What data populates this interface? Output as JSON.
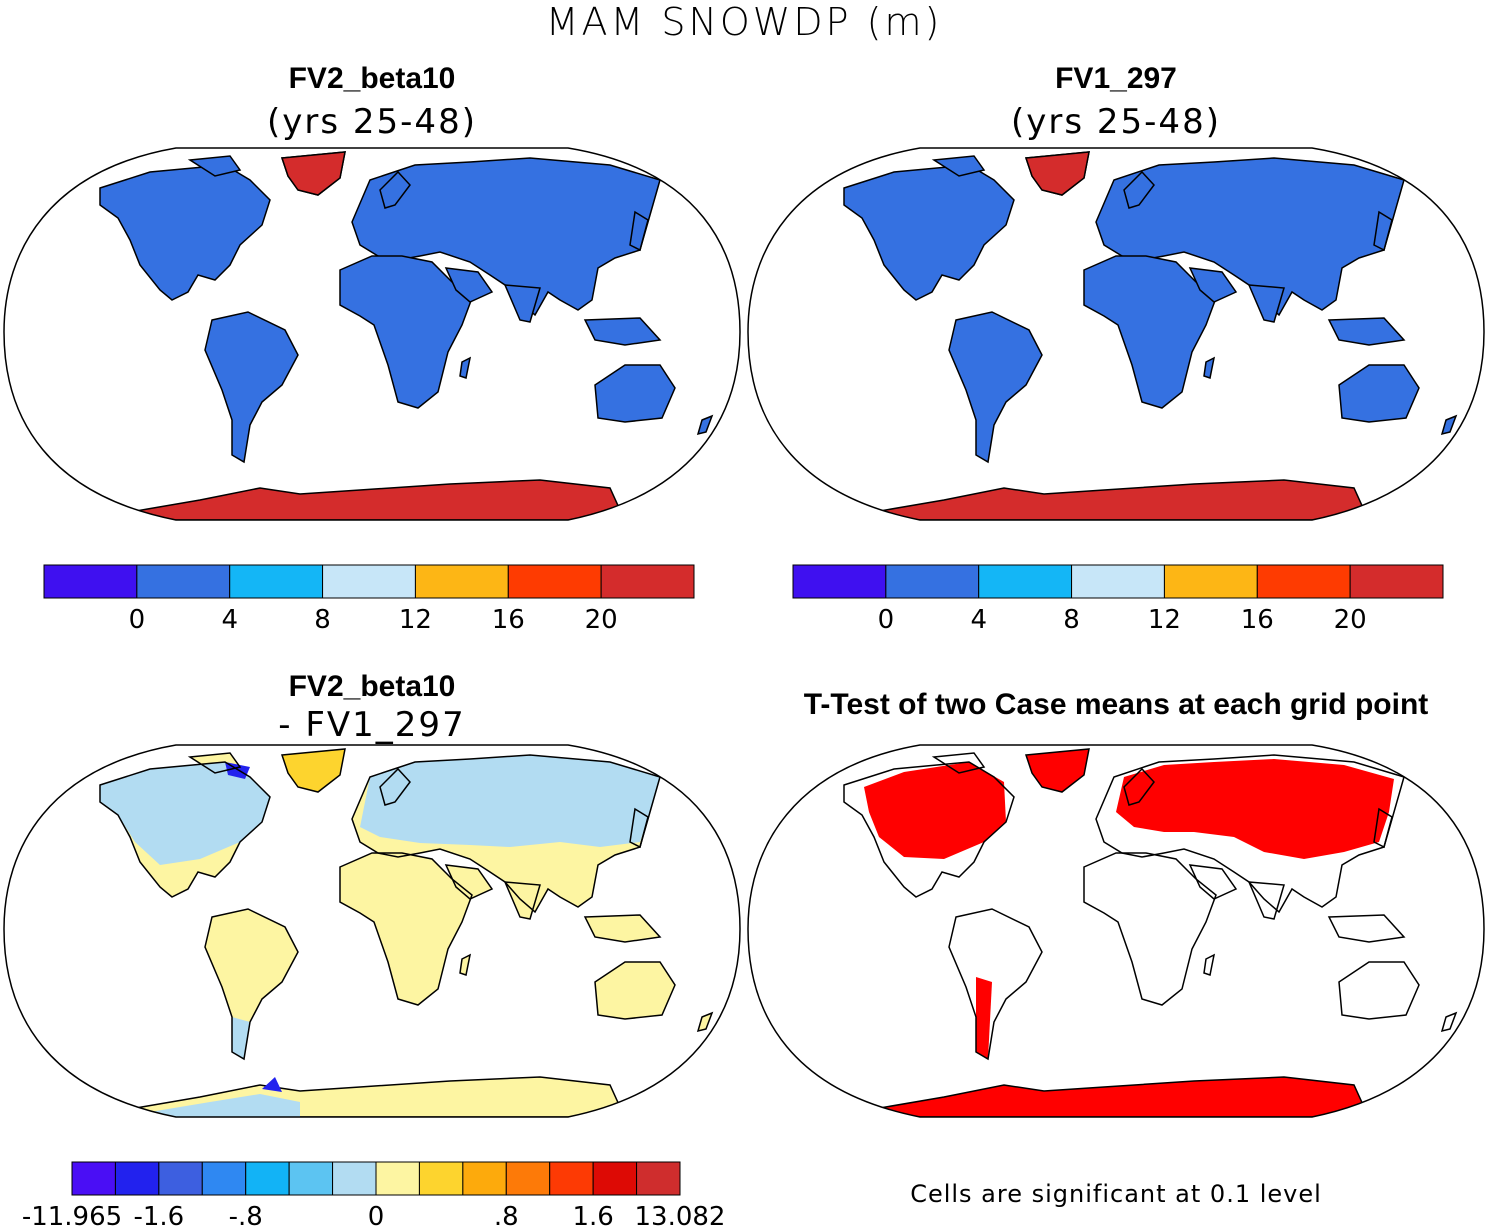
{
  "title": "MAM SNOWDP (m)",
  "panels": [
    {
      "title": "FV2_beta10",
      "subtitle": "(yrs 25-48)"
    },
    {
      "title": "FV1_297",
      "subtitle": "(yrs 25-48)"
    },
    {
      "title": "FV2_beta10",
      "subtitle": "- FV1_297"
    },
    {
      "title": "T-Test of two Case means at each grid point",
      "subtitle": ""
    }
  ],
  "colorbar_abs": {
    "colors": [
      "#3f10f0",
      "#3571e1",
      "#14b6f6",
      "#c7e6f8",
      "#fdb615",
      "#fe3b01",
      "#d42c2c"
    ],
    "labels": [
      "0",
      "4",
      "8",
      "12",
      "16",
      "20"
    ]
  },
  "colorbar_diff": {
    "colors": [
      "#4a0ef5",
      "#2222ee",
      "#3d5fe0",
      "#2f88f2",
      "#12b3f6",
      "#5cc4f2",
      "#b2dcf2",
      "#fdf5a2",
      "#fdd42e",
      "#fdaa0c",
      "#fd7a08",
      "#fd3a04",
      "#dd0a05",
      "#cf2d2d"
    ],
    "labels": [
      "-11.965",
      "-1.6",
      "-.8",
      "0",
      ".8",
      "1.6",
      "13.082"
    ]
  },
  "significance_note": "Cells are significant at 0.1 level",
  "colors": {
    "land_zero": "#3571e1",
    "ice": "#d42c2c",
    "diff_pos": "#fdf5a2",
    "diff_neg": "#b2dcf2",
    "signif": "#ff0000"
  }
}
